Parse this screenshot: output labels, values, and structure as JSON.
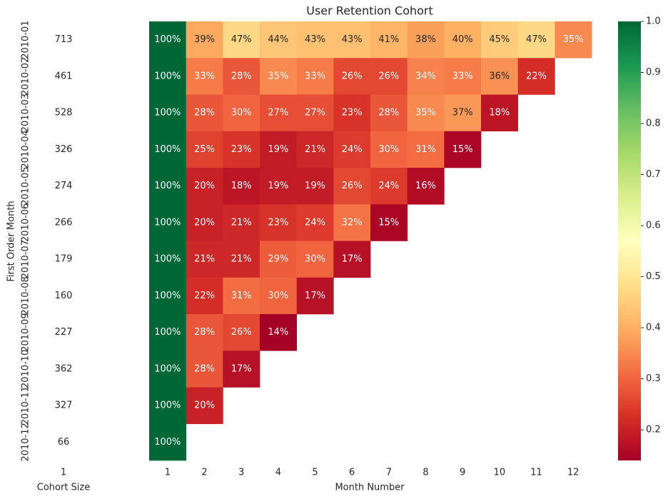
{
  "chart_data": [
    {
      "type": "heatmap",
      "xlabel": "Cohort Size",
      "ylabel": "First Order Month",
      "categories": [
        "1"
      ],
      "y_categories": [
        "2010-01",
        "2010-02",
        "2010-03",
        "2010-04",
        "2010-05",
        "2010-06",
        "2010-07",
        "2010-08",
        "2010-09",
        "2010-10",
        "2010-11",
        "2010-12"
      ],
      "color": "#ffffff",
      "values": [
        [
          713
        ],
        [
          461
        ],
        [
          528
        ],
        [
          326
        ],
        [
          274
        ],
        [
          266
        ],
        [
          179
        ],
        [
          160
        ],
        [
          227
        ],
        [
          362
        ],
        [
          327
        ],
        [
          66
        ]
      ]
    },
    {
      "type": "heatmap",
      "title": "User Retention Cohort",
      "xlabel": "Month Number",
      "categories": [
        "1",
        "2",
        "3",
        "4",
        "5",
        "6",
        "7",
        "8",
        "9",
        "10",
        "11",
        "12"
      ],
      "colormap": [
        "#a50026",
        "#d73027",
        "#f46d43",
        "#fdae61",
        "#fee08b",
        "#ffffbf",
        "#d9ef8b",
        "#a6d96a",
        "#66bd63",
        "#1a9850",
        "#006837"
      ],
      "zlim": [
        0.14,
        1
      ],
      "zticks": [
        0.2,
        0.3,
        0.4,
        0.5,
        0.6,
        0.7,
        0.8,
        0.9,
        {
          "value": 1,
          "label": "1.0"
        }
      ],
      "values": [
        [
          1,
          0.39,
          0.47,
          0.44,
          0.43,
          0.43,
          0.41,
          0.38,
          0.4,
          0.45,
          0.47,
          0.35
        ],
        [
          1,
          0.33,
          0.28,
          0.35,
          0.33,
          0.26,
          0.26,
          0.34,
          0.33,
          0.36,
          0.22,
          null
        ],
        [
          1,
          0.28,
          0.3,
          0.27,
          0.27,
          0.23,
          0.28,
          0.35,
          0.37,
          0.18,
          null,
          null
        ],
        [
          1,
          0.25,
          0.23,
          0.19,
          0.21,
          0.24,
          0.3,
          0.31,
          0.15,
          null,
          null,
          null
        ],
        [
          1,
          0.2,
          0.18,
          0.19,
          0.19,
          0.26,
          0.24,
          0.16,
          null,
          null,
          null,
          null
        ],
        [
          1,
          0.2,
          0.21,
          0.23,
          0.24,
          0.32,
          0.15,
          null,
          null,
          null,
          null,
          null
        ],
        [
          1,
          0.21,
          0.21,
          0.29,
          0.3,
          0.17,
          null,
          null,
          null,
          null,
          null,
          null
        ],
        [
          1,
          0.22,
          0.31,
          0.3,
          0.17,
          null,
          null,
          null,
          null,
          null,
          null,
          null
        ],
        [
          1,
          0.28,
          0.26,
          0.14,
          null,
          null,
          null,
          null,
          null,
          null,
          null,
          null
        ],
        [
          1,
          0.28,
          0.17,
          null,
          null,
          null,
          null,
          null,
          null,
          null,
          null,
          null
        ],
        [
          1,
          0.2,
          null,
          null,
          null,
          null,
          null,
          null,
          null,
          null,
          null,
          null
        ],
        [
          1,
          null,
          null,
          null,
          null,
          null,
          null,
          null,
          null,
          null,
          null,
          null
        ]
      ],
      "value_labels": [
        [
          "100%",
          "39%",
          "47%",
          "44%",
          "43%",
          "43%",
          "41%",
          "38%",
          "40%",
          "45%",
          "47%",
          "35%"
        ],
        [
          "100%",
          "33%",
          "28%",
          "35%",
          "33%",
          "26%",
          "26%",
          "34%",
          "33%",
          "36%",
          "22%",
          null
        ],
        [
          "100%",
          "28%",
          "30%",
          "27%",
          "27%",
          "23%",
          "28%",
          "35%",
          "37%",
          "18%",
          null,
          null
        ],
        [
          "100%",
          "25%",
          "23%",
          "19%",
          "21%",
          "24%",
          "30%",
          "31%",
          "15%",
          null,
          null,
          null
        ],
        [
          "100%",
          "20%",
          "18%",
          "19%",
          "19%",
          "26%",
          "24%",
          "16%",
          null,
          null,
          null,
          null
        ],
        [
          "100%",
          "20%",
          "21%",
          "23%",
          "24%",
          "32%",
          "15%",
          null,
          null,
          null,
          null,
          null
        ],
        [
          "100%",
          "21%",
          "21%",
          "29%",
          "30%",
          "17%",
          null,
          null,
          null,
          null,
          null,
          null
        ],
        [
          "100%",
          "22%",
          "31%",
          "30%",
          "17%",
          null,
          null,
          null,
          null,
          null,
          null,
          null
        ],
        [
          "100%",
          "28%",
          "26%",
          "14%",
          null,
          null,
          null,
          null,
          null,
          null,
          null,
          null
        ],
        [
          "100%",
          "28%",
          "17%",
          null,
          null,
          null,
          null,
          null,
          null,
          null,
          null,
          null
        ],
        [
          "100%",
          "20%",
          null,
          null,
          null,
          null,
          null,
          null,
          null,
          null,
          null,
          null
        ],
        [
          "100%",
          null,
          null,
          null,
          null,
          null,
          null,
          null,
          null,
          null,
          null,
          null
        ]
      ]
    }
  ]
}
